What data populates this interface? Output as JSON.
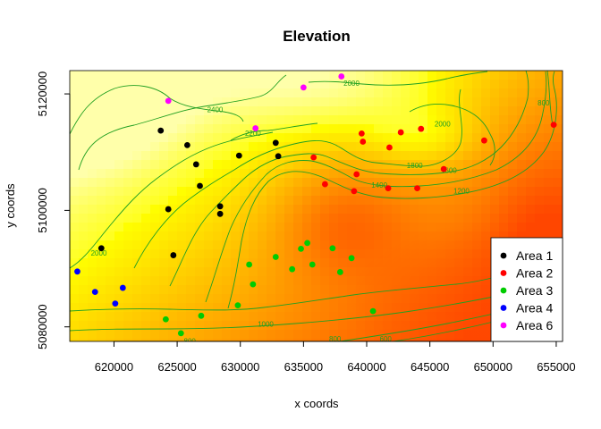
{
  "chart_data": {
    "type": "heatmap",
    "title": "Elevation",
    "xlabel": "x coords",
    "ylabel": "y coords",
    "xlim": [
      616500,
      655500
    ],
    "ylim": [
      5077500,
      5124000
    ],
    "x_ticks": [
      620000,
      625000,
      630000,
      635000,
      640000,
      645000,
      650000,
      655000
    ],
    "x_tick_labels": [
      "620000",
      "625000",
      "630000",
      "635000",
      "640000",
      "645000",
      "650000",
      "655000"
    ],
    "y_ticks": [
      5080000,
      5100000,
      5120000
    ],
    "y_tick_labels": [
      "5080000",
      "5100000",
      "5120000"
    ],
    "background": "elevation raster, white/yellow (high) to orange/red (low)",
    "contour_color": "#22a022",
    "contour_levels": [
      "800",
      "1000",
      "1200",
      "1400",
      "1600",
      "1800",
      "2000",
      "2200",
      "2400"
    ],
    "contour_labels": [
      {
        "text": "2400",
        "x": 628000,
        "y": 5116900
      },
      {
        "text": "2200",
        "x": 631000,
        "y": 5112800
      },
      {
        "text": "2000",
        "x": 618800,
        "y": 5092200
      },
      {
        "text": "2000",
        "x": 638800,
        "y": 5121400
      },
      {
        "text": "2000",
        "x": 646000,
        "y": 5114400
      },
      {
        "text": "1800",
        "x": 643800,
        "y": 5107300
      },
      {
        "text": "1600",
        "x": 646500,
        "y": 5106400
      },
      {
        "text": "1400",
        "x": 641000,
        "y": 5103900
      },
      {
        "text": "1200",
        "x": 647500,
        "y": 5102900
      },
      {
        "text": "1000",
        "x": 632000,
        "y": 5080000
      },
      {
        "text": "800",
        "x": 637500,
        "y": 5077500
      },
      {
        "text": "600",
        "x": 641500,
        "y": 5077500
      },
      {
        "text": "400",
        "x": 650500,
        "y": 5077800
      },
      {
        "text": "800",
        "x": 654000,
        "y": 5118000
      },
      {
        "text": "800",
        "x": 626000,
        "y": 5077100
      }
    ],
    "legend_position": "bottom-right",
    "series": [
      {
        "name": "Area 1",
        "color": "#000000",
        "points": [
          [
            619000,
            5093500
          ],
          [
            623700,
            5113700
          ],
          [
            624300,
            5100200
          ],
          [
            624700,
            5092300
          ],
          [
            625800,
            5111200
          ],
          [
            626500,
            5107900
          ],
          [
            626800,
            5104200
          ],
          [
            628400,
            5100700
          ],
          [
            628400,
            5099400
          ],
          [
            629900,
            5109400
          ],
          [
            632800,
            5111600
          ],
          [
            633000,
            5109300
          ]
        ]
      },
      {
        "name": "Area 2",
        "color": "#ff0000",
        "points": [
          [
            635800,
            5109100
          ],
          [
            636700,
            5104500
          ],
          [
            639000,
            5103300
          ],
          [
            639200,
            5106200
          ],
          [
            639600,
            5113200
          ],
          [
            639700,
            5111800
          ],
          [
            641700,
            5103800
          ],
          [
            641800,
            5110800
          ],
          [
            642700,
            5113400
          ],
          [
            644000,
            5103800
          ],
          [
            644300,
            5114000
          ],
          [
            646100,
            5107100
          ],
          [
            649300,
            5112000
          ],
          [
            654800,
            5114700
          ]
        ]
      },
      {
        "name": "Area 3",
        "color": "#00cc00",
        "points": [
          [
            624100,
            5081300
          ],
          [
            625300,
            5078900
          ],
          [
            626900,
            5081900
          ],
          [
            629800,
            5083700
          ],
          [
            630700,
            5090700
          ],
          [
            631000,
            5087300
          ],
          [
            632800,
            5092000
          ],
          [
            634100,
            5089900
          ],
          [
            634800,
            5093400
          ],
          [
            635300,
            5094400
          ],
          [
            635700,
            5090700
          ],
          [
            637300,
            5093500
          ],
          [
            637900,
            5089400
          ],
          [
            638800,
            5091800
          ],
          [
            640500,
            5082700
          ]
        ]
      },
      {
        "name": "Area 4",
        "color": "#0000ff",
        "points": [
          [
            617100,
            5089500
          ],
          [
            618500,
            5086000
          ],
          [
            620100,
            5084000
          ],
          [
            620700,
            5086700
          ]
        ]
      },
      {
        "name": "Area 6",
        "color": "#ff00ff",
        "points": [
          [
            624300,
            5118800
          ],
          [
            631200,
            5114100
          ],
          [
            635000,
            5121100
          ],
          [
            638000,
            5123000
          ]
        ]
      }
    ]
  }
}
